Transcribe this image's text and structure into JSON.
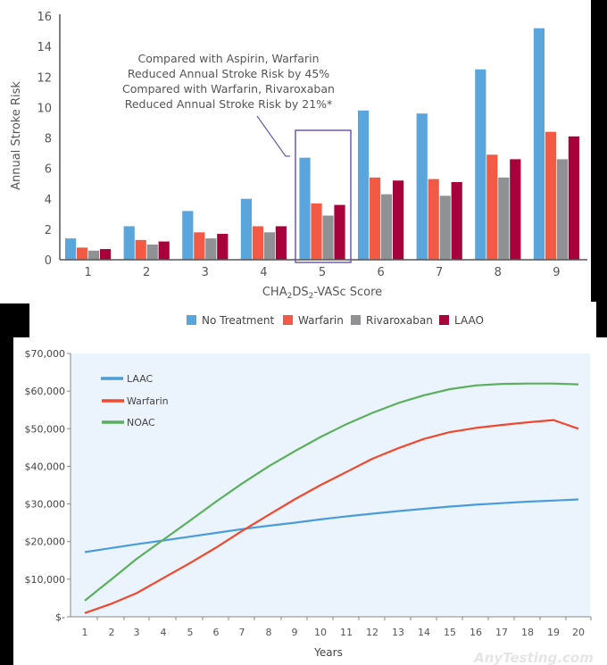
{
  "chart_data": [
    {
      "type": "bar",
      "title": "",
      "xlabel": "CHA2DS2-VASc Score",
      "xlabel_parts": {
        "a": "CHA",
        "s1": "2",
        "b": "DS",
        "s2": "2",
        "c": "-VASc Score"
      },
      "ylabel": "Annual Stroke Risk",
      "ylim": [
        0,
        16
      ],
      "yticks": [
        0,
        2,
        4,
        6,
        8,
        10,
        12,
        14,
        16
      ],
      "categories": [
        "1",
        "2",
        "3",
        "4",
        "5",
        "6",
        "7",
        "8",
        "9"
      ],
      "series": [
        {
          "name": "No Treatment",
          "color": "#5aa5db",
          "values": [
            1.4,
            2.2,
            3.2,
            4.0,
            6.7,
            9.8,
            9.6,
            12.5,
            15.2
          ]
        },
        {
          "name": "Warfarin",
          "color": "#f25a45",
          "values": [
            0.8,
            1.3,
            1.8,
            2.2,
            3.7,
            5.4,
            5.3,
            6.9,
            8.4
          ]
        },
        {
          "name": "Rivaroxaban",
          "color": "#8f9194",
          "values": [
            0.6,
            1.0,
            1.4,
            1.8,
            2.9,
            4.3,
            4.2,
            5.4,
            6.6
          ]
        },
        {
          "name": "LAAO",
          "color": "#a8003a",
          "values": [
            0.7,
            1.2,
            1.7,
            2.2,
            3.6,
            5.2,
            5.1,
            6.6,
            8.1
          ]
        }
      ],
      "legend": "bottom",
      "highlight_category": "5",
      "annotation": [
        "Compared with Aspirin, Warfarin",
        "Reduced Annual Stroke Risk by 45%",
        "Compared with Warfarin, Rivaroxaban",
        "Reduced Annual Stroke Risk by 21%*"
      ],
      "grid": false
    },
    {
      "type": "line",
      "title": "",
      "xlabel": "Years",
      "ylabel": "",
      "x": [
        1,
        2,
        3,
        4,
        5,
        6,
        7,
        8,
        9,
        10,
        11,
        12,
        13,
        14,
        15,
        16,
        17,
        18,
        19,
        20
      ],
      "ylim": [
        0,
        70000
      ],
      "yticks": [
        0,
        10000,
        20000,
        30000,
        40000,
        50000,
        60000,
        70000
      ],
      "ytick_labels": [
        "$-",
        "$10,000",
        "$20,000",
        "$30,000",
        "$40,000",
        "$50,000",
        "$60,000",
        "$70,000"
      ],
      "series": [
        {
          "name": "LAAC",
          "color": "#4b9cd8",
          "values": [
            17200,
            18300,
            19300,
            20300,
            21300,
            22300,
            23300,
            24200,
            25000,
            25900,
            26700,
            27400,
            28100,
            28700,
            29300,
            29800,
            30200,
            30600,
            30900,
            31200
          ]
        },
        {
          "name": "Warfarin",
          "color": "#ef4a30",
          "values": [
            1000,
            3500,
            6300,
            10300,
            14300,
            18400,
            22800,
            27100,
            31200,
            35000,
            38500,
            42000,
            44800,
            47300,
            49100,
            50200,
            51000,
            51700,
            52300,
            50000
          ]
        },
        {
          "name": "NOAC",
          "color": "#5bb05e",
          "values": [
            4300,
            10000,
            15400,
            20500,
            25600,
            30600,
            35400,
            40000,
            44000,
            47800,
            51200,
            54200,
            56800,
            58900,
            60500,
            61500,
            61900,
            62000,
            62000,
            61800
          ]
        }
      ],
      "legend": "top-left",
      "grid": false,
      "background": "#ebf3fc"
    }
  ]
}
